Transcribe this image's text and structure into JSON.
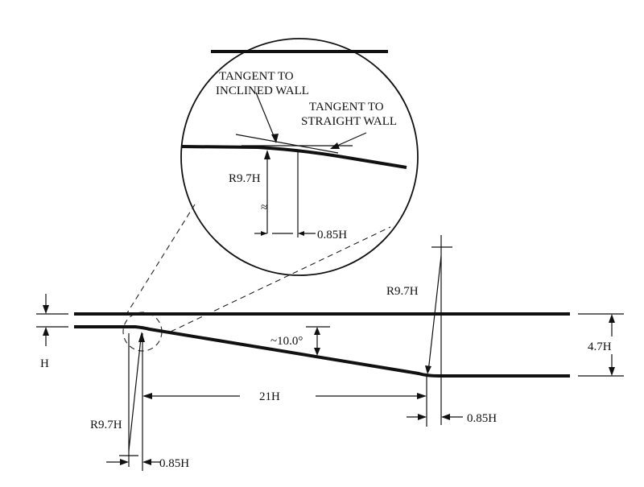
{
  "diagram": {
    "description_free": true,
    "labels": {
      "tangent_inclined": [
        "TANGENT TO",
        "INCLINED WALL"
      ],
      "tangent_straight": [
        "TANGENT TO",
        "STRAIGHT WALL"
      ],
      "radius_detail": "R9.7H",
      "offset_detail": "0.85H",
      "radius_right": "R9.7H",
      "angle": "~10.0°",
      "height_total": "4.7H",
      "step_height": "H",
      "length": "21H",
      "offset_right": "0.85H",
      "radius_left": "R9.7H",
      "offset_left": "0.85H",
      "approx_symbol": "≈"
    }
  }
}
